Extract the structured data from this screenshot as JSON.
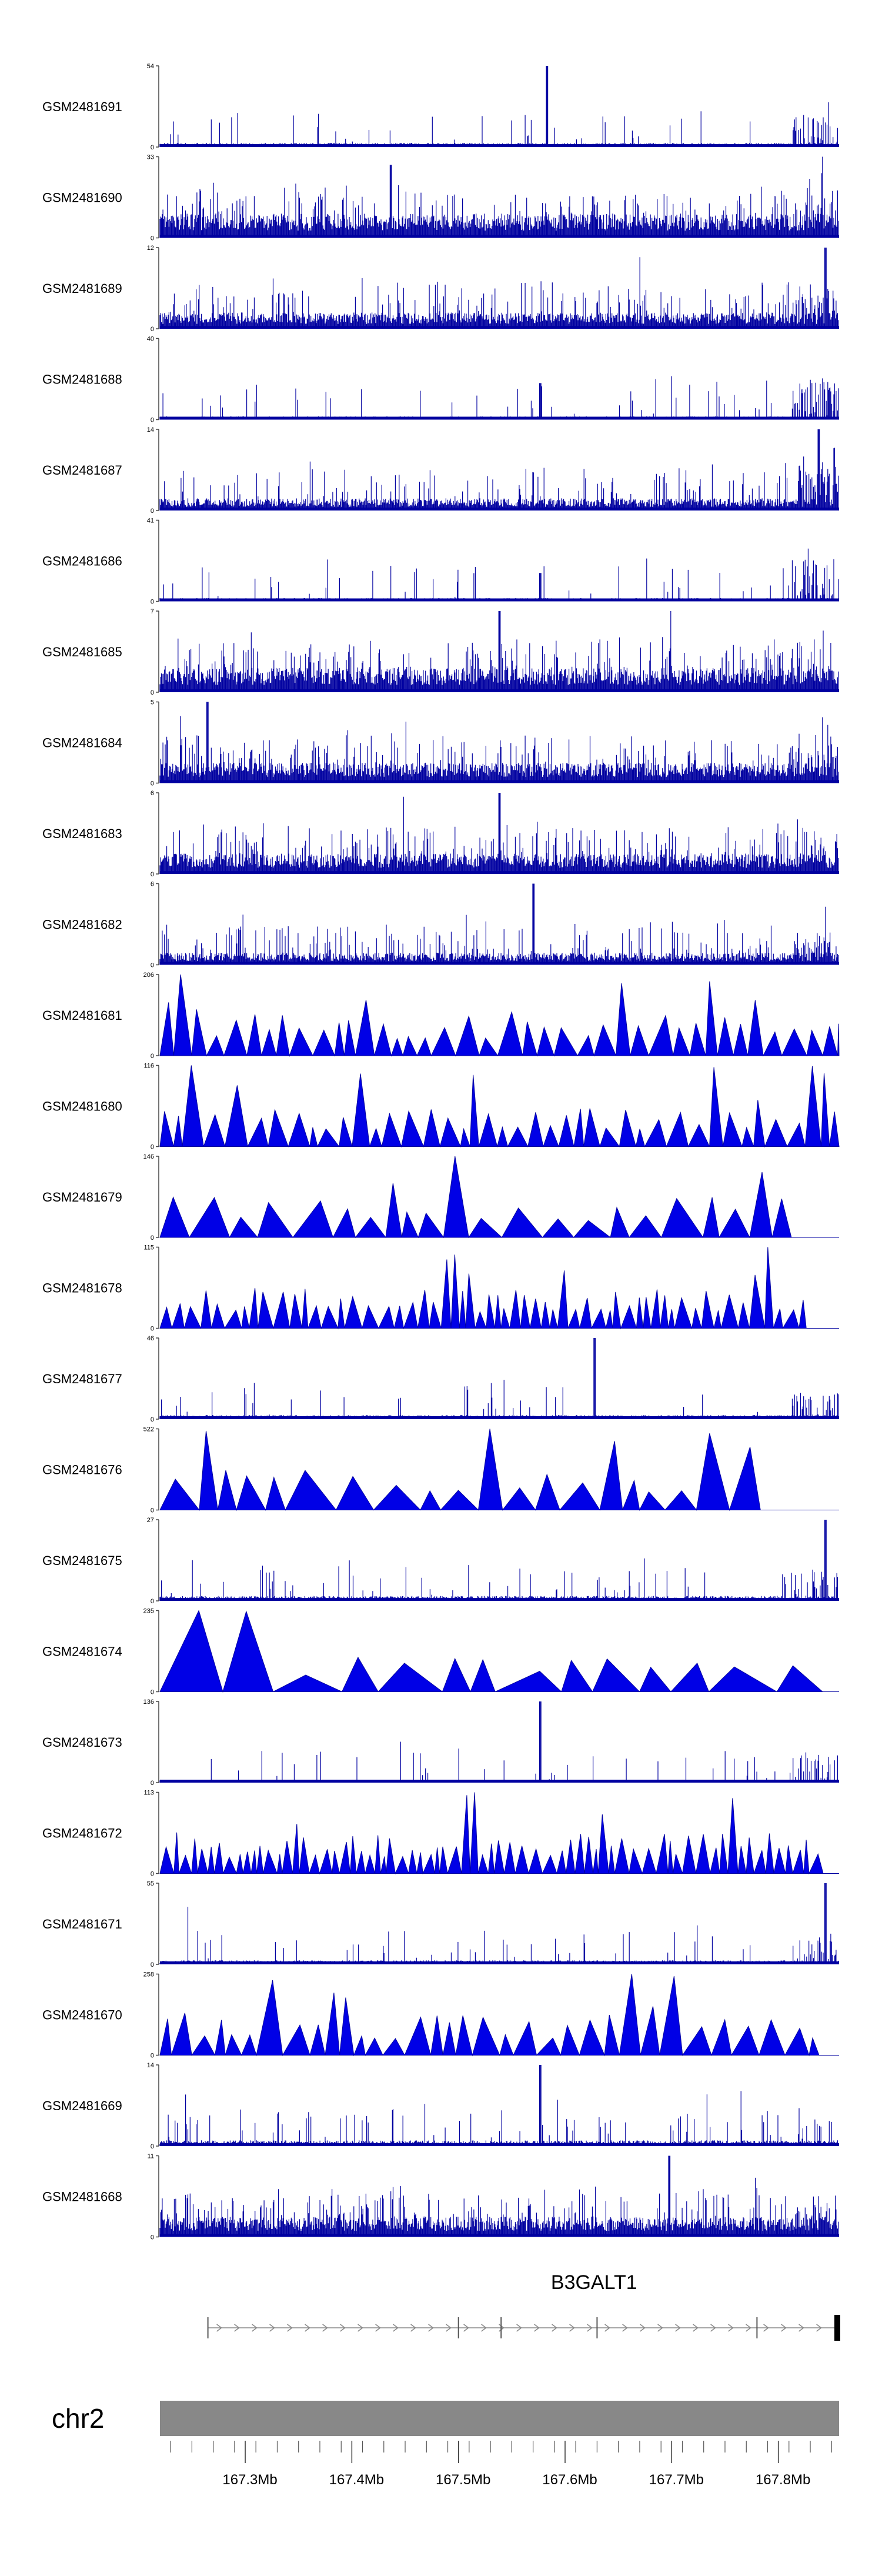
{
  "chart_data": {
    "type": "area",
    "title": "",
    "region": {
      "chrom": "chr2",
      "start_mb": 167.22,
      "end_mb": 167.857
    },
    "style": {
      "signal_color": "#0000e6",
      "signal_outline": "#0000a0",
      "ideogram_color": "#888888",
      "gene_color": "#000000"
    },
    "tracks": [
      {
        "name": "GSM2481691",
        "ymax": "54",
        "ymin": "0",
        "style": "dense",
        "peak_at": 0.57,
        "peak_frac": 1.0,
        "baseline": 0.05,
        "noise": 0.1,
        "right_cluster": 0.7
      },
      {
        "name": "GSM2481690",
        "ymax": "33",
        "ymin": "0",
        "style": "dense",
        "peak_at": 0.34,
        "peak_frac": 0.9,
        "baseline": 0.3,
        "noise": 0.45,
        "right_cluster": 0.4
      },
      {
        "name": "GSM2481689",
        "ymax": "12",
        "ymin": "0",
        "style": "dense",
        "peak_at": 0.98,
        "peak_frac": 1.0,
        "baseline": 0.2,
        "noise": 0.45,
        "right_cluster": 0.6
      },
      {
        "name": "GSM2481688",
        "ymax": "40",
        "ymin": "0",
        "style": "dense",
        "peak_at": 0.56,
        "peak_frac": 0.45,
        "baseline": 0.04,
        "noise": 0.1,
        "right_cluster": 1.0
      },
      {
        "name": "GSM2481687",
        "ymax": "14",
        "ymin": "0",
        "style": "dense",
        "peak_at": 0.97,
        "peak_frac": 1.0,
        "baseline": 0.15,
        "noise": 0.3,
        "right_cluster": 0.9
      },
      {
        "name": "GSM2481686",
        "ymax": "41",
        "ymin": "0",
        "style": "dense",
        "peak_at": 0.56,
        "peak_frac": 0.35,
        "baseline": 0.04,
        "noise": 0.1,
        "right_cluster": 1.0
      },
      {
        "name": "GSM2481685",
        "ymax": "7",
        "ymin": "0",
        "style": "dense",
        "peak_at": 0.5,
        "peak_frac": 1.0,
        "baseline": 0.3,
        "noise": 0.5,
        "right_cluster": 0.4
      },
      {
        "name": "GSM2481684",
        "ymax": "5",
        "ymin": "0",
        "style": "dense",
        "peak_at": 0.07,
        "peak_frac": 1.0,
        "baseline": 0.25,
        "noise": 0.5,
        "right_cluster": 0.5
      },
      {
        "name": "GSM2481683",
        "ymax": "6",
        "ymin": "0",
        "style": "dense",
        "peak_at": 0.5,
        "peak_frac": 1.0,
        "baseline": 0.25,
        "noise": 0.55,
        "right_cluster": 0.5
      },
      {
        "name": "GSM2481682",
        "ymax": "6",
        "ymin": "0",
        "style": "dense",
        "peak_at": 0.55,
        "peak_frac": 1.0,
        "baseline": 0.15,
        "noise": 0.4,
        "right_cluster": 0.5
      },
      {
        "name": "GSM2481681",
        "ymax": "206",
        "ymin": "0",
        "style": "spiky",
        "peak_at": 0.04,
        "peak_frac": 1.0,
        "spike_count": 40,
        "right_cluster": 0.8
      },
      {
        "name": "GSM2481680",
        "ymax": "116",
        "ymin": "0",
        "style": "spiky",
        "peak_at": 0.05,
        "peak_frac": 1.0,
        "spike_count": 44,
        "right_cluster": 0.6
      },
      {
        "name": "GSM2481679",
        "ymax": "146",
        "ymin": "0",
        "style": "spiky",
        "peak_at": 0.42,
        "peak_frac": 1.0,
        "spike_count": 22,
        "right_cluster": 0.6
      },
      {
        "name": "GSM2481678",
        "ymax": "115",
        "ymin": "0",
        "style": "spiky",
        "peak_at": 0.9,
        "peak_frac": 1.0,
        "spike_count": 58,
        "right_cluster": 0.5
      },
      {
        "name": "GSM2481677",
        "ymax": "46",
        "ymin": "0",
        "style": "dense",
        "peak_at": 0.64,
        "peak_frac": 1.0,
        "baseline": 0.05,
        "noise": 0.12,
        "right_cluster": 0.6
      },
      {
        "name": "GSM2481676",
        "ymax": "522",
        "ymin": "0",
        "style": "spiky",
        "peak_at": 0.5,
        "peak_frac": 1.0,
        "spike_count": 20,
        "right_cluster": 0.5
      },
      {
        "name": "GSM2481675",
        "ymax": "27",
        "ymin": "0",
        "style": "dense",
        "peak_at": 0.98,
        "peak_frac": 1.0,
        "baseline": 0.06,
        "noise": 0.15,
        "right_cluster": 0.6
      },
      {
        "name": "GSM2481674",
        "ymax": "235",
        "ymin": "0",
        "style": "spiky",
        "peak_at": 0.02,
        "peak_frac": 1.0,
        "spike_count": 14,
        "right_cluster": 0.5
      },
      {
        "name": "GSM2481673",
        "ymax": "136",
        "ymin": "0",
        "style": "dense",
        "peak_at": 0.56,
        "peak_frac": 1.0,
        "baseline": 0.03,
        "noise": 0.06,
        "right_cluster": 0.7
      },
      {
        "name": "GSM2481672",
        "ymax": "113",
        "ymin": "0",
        "style": "spiky",
        "peak_at": 0.46,
        "peak_frac": 1.0,
        "spike_count": 70,
        "right_cluster": 0.5
      },
      {
        "name": "GSM2481671",
        "ymax": "55",
        "ymin": "0",
        "style": "dense",
        "peak_at": 0.98,
        "peak_frac": 1.0,
        "baseline": 0.05,
        "noise": 0.12,
        "right_cluster": 0.6
      },
      {
        "name": "GSM2481670",
        "ymax": "258",
        "ymin": "0",
        "style": "spiky",
        "peak_at": 0.68,
        "peak_frac": 1.0,
        "spike_count": 34,
        "right_cluster": 0.5
      },
      {
        "name": "GSM2481669",
        "ymax": "14",
        "ymin": "0",
        "style": "dense",
        "peak_at": 0.56,
        "peak_frac": 1.0,
        "baseline": 0.07,
        "noise": 0.2,
        "right_cluster": 0.5
      },
      {
        "name": "GSM2481668",
        "ymax": "11",
        "ymin": "0",
        "style": "dense",
        "peak_at": 0.75,
        "peak_frac": 1.0,
        "baseline": 0.25,
        "noise": 0.5,
        "right_cluster": 0.4
      }
    ],
    "gene": {
      "name": "B3GALT1",
      "start_mb": 167.265,
      "end_mb": 167.857,
      "strand": "+"
    },
    "chromosome_label": "chr2",
    "x_ticks": [
      {
        "value": 167.3,
        "label": "167.3Mb"
      },
      {
        "value": 167.4,
        "label": "167.4Mb"
      },
      {
        "value": 167.5,
        "label": "167.5Mb"
      },
      {
        "value": 167.6,
        "label": "167.6Mb"
      },
      {
        "value": 167.7,
        "label": "167.7Mb"
      },
      {
        "value": 167.8,
        "label": "167.8Mb"
      }
    ]
  }
}
